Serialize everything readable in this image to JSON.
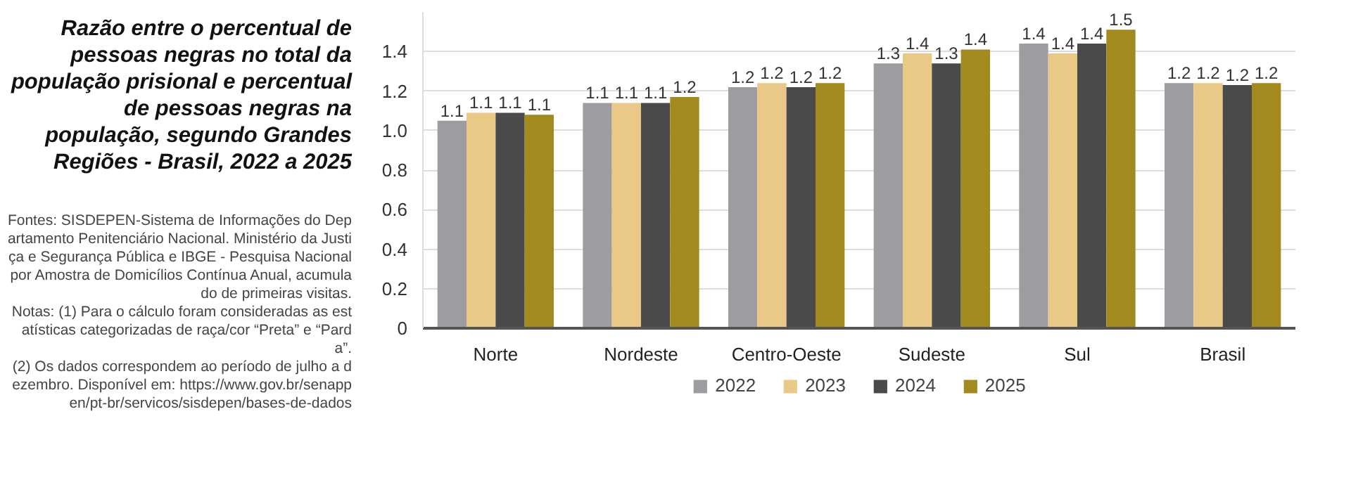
{
  "chart_data": {
    "type": "bar",
    "title": "Razão entre o percentual de pessoas negras no total da população prisional e percentual de pessoas negras na população, segundo Grandes Regiões - Brasil, 2022 a 2025",
    "annotations": [
      "Fontes: SISDEPEN-Sistema de Informações do Departamento Penitenciário Nacional. Ministério da Justiça e Segurança Pública e IBGE - Pesquisa Nacional por Amostra de Domicílios Contínua Anual, acumulado de primeiras visitas.",
      "Notas: (1) Para o cálculo foram consideradas as estatísticas categorizadas de raça/cor “Preta” e “Parda”.",
      "(2) Os dados correspondem ao período de julho a dezembro. Disponível em: https://www.gov.br/senappen/pt-br/servicos/sisdepen/bases-de-dados"
    ],
    "categories": [
      "Norte",
      "Nordeste",
      "Centro-Oeste",
      "Sudeste",
      "Sul",
      "Brasil"
    ],
    "series": [
      {
        "name": "2022",
        "color": "#9d9ca1",
        "values": [
          1.05,
          1.14,
          1.22,
          1.34,
          1.44,
          1.24
        ],
        "value_labels": [
          "1.1",
          "1.1",
          "1.2",
          "1.3",
          "1.4",
          "1.2"
        ]
      },
      {
        "name": "2023",
        "color": "#eac987",
        "values": [
          1.09,
          1.14,
          1.24,
          1.39,
          1.39,
          1.24
        ],
        "value_labels": [
          "1.1",
          "1.1",
          "1.2",
          "1.4",
          "1.4",
          "1.2"
        ]
      },
      {
        "name": "2024",
        "color": "#4a4a4a",
        "values": [
          1.09,
          1.14,
          1.22,
          1.34,
          1.44,
          1.23
        ],
        "value_labels": [
          "1.1",
          "1.1",
          "1.2",
          "1.3",
          "1.4",
          "1.2"
        ]
      },
      {
        "name": "2025",
        "color": "#a28a1e",
        "values": [
          1.08,
          1.17,
          1.24,
          1.41,
          1.51,
          1.24
        ],
        "value_labels": [
          "1.1",
          "1.2",
          "1.2",
          "1.4",
          "1.5",
          "1.2"
        ]
      }
    ],
    "ylim": [
      0,
      1.6
    ],
    "yticks": [
      0,
      {
        "value": 0.2,
        "label": "0.2"
      },
      {
        "value": 0.4,
        "label": "0.4"
      },
      {
        "value": 0.6,
        "label": "0.6"
      },
      {
        "value": 0.8,
        "label": "0.8"
      },
      {
        "value": 1.0,
        "label": "1.0"
      },
      {
        "value": 1.2,
        "label": "1.2"
      },
      {
        "value": 1.4,
        "label": "1.4"
      }
    ],
    "grid": "y",
    "legend": "bottom"
  }
}
